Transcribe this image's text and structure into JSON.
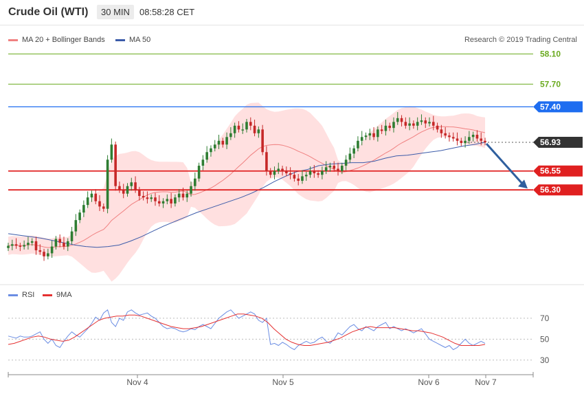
{
  "header": {
    "title": "Crude Oil (WTI)",
    "timeframe": "30 MIN",
    "time": "08:58:28 CET"
  },
  "legend": {
    "bollinger": "MA 20 + Bollinger Bands",
    "ma50": "MA 50",
    "credit": "Research © 2019 Trading Central"
  },
  "rsi_legend": {
    "rsi": "RSI",
    "ma9": "9MA"
  },
  "colors": {
    "up_candle": "#2e7d32",
    "down_candle": "#c62828",
    "bollinger_fill": "#ffd6d6",
    "ma20": "#f08080",
    "ma50": "#3b5ba9",
    "target_green": "#6aaa1f",
    "pivot_blue": "#1e6df0",
    "support_red": "#e02020",
    "current_price_bg": "#333333",
    "arrow": "#2f5f9e",
    "rsi_line": "#6b8de3",
    "rsi_ma": "#e53030"
  },
  "chart_data": [
    {
      "type": "candlestick",
      "symbol": "Crude Oil (WTI)",
      "interval": "30 MIN",
      "ylim": [
        55.1,
        58.25
      ],
      "x_ticks": [
        "Nov 4",
        "Nov 5",
        "Nov 6",
        "Nov 7"
      ],
      "levels": [
        {
          "label": "58.10",
          "value": 58.1,
          "role": "target"
        },
        {
          "label": "57.70",
          "value": 57.7,
          "role": "target"
        },
        {
          "label": "57.40",
          "value": 57.4,
          "role": "pivot"
        },
        {
          "label": "56.93",
          "value": 56.93,
          "role": "last price"
        },
        {
          "label": "56.55",
          "value": 56.55,
          "role": "support"
        },
        {
          "label": "56.30",
          "value": 56.3,
          "role": "support"
        }
      ],
      "close_prices": [
        55.56,
        55.58,
        55.56,
        55.55,
        55.57,
        55.6,
        55.62,
        55.5,
        55.48,
        55.42,
        55.46,
        55.55,
        55.65,
        55.6,
        55.55,
        55.62,
        55.75,
        55.9,
        56.0,
        56.1,
        56.2,
        56.25,
        56.15,
        56.08,
        56.05,
        56.7,
        56.9,
        56.35,
        56.3,
        56.25,
        56.35,
        56.4,
        56.3,
        56.22,
        56.2,
        56.18,
        56.2,
        56.15,
        56.12,
        56.15,
        56.18,
        56.12,
        56.2,
        56.25,
        56.2,
        56.25,
        56.35,
        56.45,
        56.62,
        56.7,
        56.8,
        56.85,
        56.9,
        56.95,
        56.9,
        57.0,
        57.05,
        57.15,
        57.1,
        57.1,
        57.2,
        57.15,
        57.05,
        57.1,
        56.8,
        56.55,
        56.5,
        56.55,
        56.58,
        56.55,
        56.52,
        56.5,
        56.45,
        56.42,
        56.48,
        56.5,
        56.55,
        56.52,
        56.5,
        56.55,
        56.6,
        56.62,
        56.58,
        56.55,
        56.62,
        56.7,
        56.78,
        56.85,
        56.95,
        57.0,
        57.02,
        57.05,
        57.0,
        57.1,
        57.08,
        57.15,
        57.12,
        57.2,
        57.25,
        57.2,
        57.15,
        57.18,
        57.15,
        57.2,
        57.22,
        57.18,
        57.2,
        57.15,
        57.1,
        57.05,
        57.02,
        57.0,
        56.98,
        56.95,
        56.92,
        56.95,
        57.0,
        57.03,
        56.98,
        56.95,
        56.93
      ],
      "ma50": [
        55.72,
        55.7,
        55.68,
        55.66,
        55.63,
        55.6,
        55.57,
        55.55,
        55.54,
        55.55,
        55.57,
        55.62,
        55.68,
        55.75,
        55.82,
        55.88,
        55.94,
        56.0,
        56.05,
        56.1,
        56.15,
        56.2,
        56.26,
        56.33,
        56.41,
        56.48,
        56.54,
        56.57,
        56.62,
        56.64,
        56.65,
        56.66,
        56.66,
        56.68,
        56.72,
        56.75,
        56.76,
        56.78,
        56.8,
        56.82,
        56.85,
        56.88,
        56.9,
        56.93
      ],
      "series": [
        {
          "name": "MA 20 + Bollinger Bands"
        },
        {
          "name": "MA 50"
        }
      ]
    },
    {
      "type": "line",
      "ylim": [
        22,
        85
      ],
      "y_ticks": [
        70,
        50,
        30
      ],
      "series": [
        {
          "name": "RSI",
          "values": [
            53,
            52,
            51,
            53,
            52,
            52,
            53,
            55,
            57,
            50,
            46,
            50,
            44,
            42,
            48,
            53,
            57,
            54,
            52,
            56,
            60,
            65,
            71,
            68,
            75,
            78,
            66,
            62,
            70,
            68,
            76,
            78,
            75,
            73,
            74,
            75,
            72,
            70,
            66,
            62,
            60,
            61,
            60,
            58,
            57,
            58,
            60,
            59,
            62,
            64,
            62,
            60,
            65,
            70,
            73,
            76,
            78,
            74,
            70,
            72,
            74,
            76,
            74,
            68,
            66,
            70,
            45,
            46,
            44,
            47,
            45,
            42,
            40,
            44,
            46,
            48,
            46,
            47,
            50,
            52,
            48,
            46,
            50,
            56,
            54,
            58,
            62,
            64,
            60,
            58,
            62,
            60,
            58,
            62,
            64,
            66,
            60,
            62,
            60,
            58,
            60,
            58,
            56,
            58,
            60,
            55,
            50,
            48,
            46,
            44,
            42,
            44,
            40,
            42,
            46,
            50,
            46,
            44,
            46,
            48,
            46
          ]
        },
        {
          "name": "9MA",
          "values": [
            45,
            46,
            48,
            50,
            52,
            53,
            52,
            50,
            49,
            48,
            49,
            52,
            56,
            60,
            64,
            68,
            70,
            71,
            72,
            72,
            73,
            73,
            72,
            70,
            68,
            66,
            64,
            62,
            61,
            60,
            60,
            61,
            62,
            64,
            66,
            68,
            70,
            72,
            74,
            74,
            73,
            72,
            70,
            66,
            60,
            55,
            50,
            47,
            45,
            44,
            44,
            45,
            46,
            47,
            49,
            51,
            54,
            57,
            59,
            61,
            62,
            61,
            61,
            61,
            61,
            60,
            59,
            58,
            58,
            57,
            56,
            54,
            52,
            49,
            46,
            44,
            44,
            44,
            44,
            45
          ]
        }
      ]
    }
  ]
}
